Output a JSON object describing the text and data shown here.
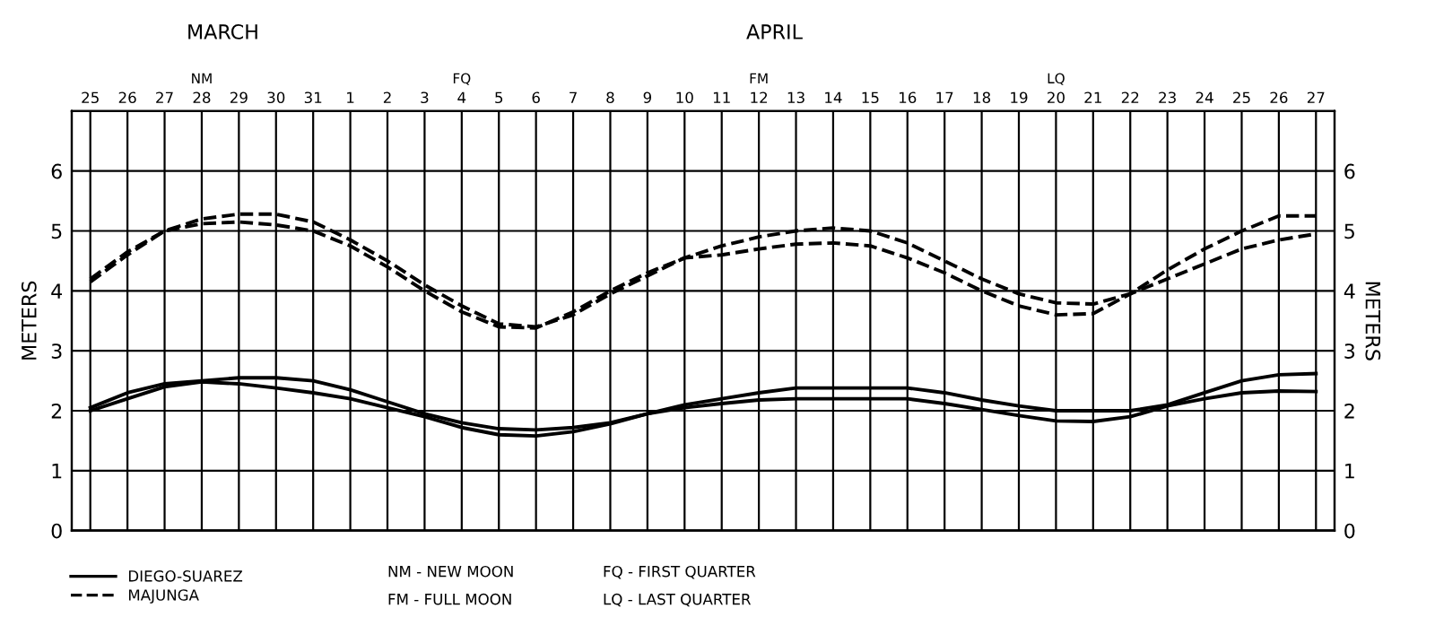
{
  "chart_data": {
    "type": "line",
    "categories": [
      "25",
      "26",
      "27",
      "28",
      "29",
      "30",
      "31",
      "1",
      "2",
      "3",
      "4",
      "5",
      "6",
      "7",
      "8",
      "9",
      "10",
      "11",
      "12",
      "13",
      "14",
      "15",
      "16",
      "17",
      "18",
      "19",
      "20",
      "21",
      "22",
      "23",
      "24",
      "25",
      "26",
      "27"
    ],
    "series": [
      {
        "name": "DIEGO-SUAREZ",
        "color": "#000000",
        "line_style": "solid",
        "values": [
          2.05,
          2.3,
          2.45,
          2.5,
          2.55,
          2.55,
          2.5,
          2.35,
          2.15,
          1.95,
          1.8,
          1.7,
          1.68,
          1.72,
          1.8,
          1.95,
          2.1,
          2.2,
          2.3,
          2.38,
          2.38,
          2.38,
          2.38,
          2.3,
          2.18,
          2.08,
          2.0,
          2.0,
          2.0,
          2.1,
          2.3,
          2.5,
          2.6,
          2.62
        ]
      },
      {
        "color": "#000000",
        "line_style": "solid",
        "values": [
          2.0,
          2.2,
          2.4,
          2.48,
          2.45,
          2.38,
          2.3,
          2.2,
          2.05,
          1.9,
          1.72,
          1.6,
          1.58,
          1.65,
          1.78,
          1.95,
          2.05,
          2.12,
          2.18,
          2.2,
          2.2,
          2.2,
          2.2,
          2.12,
          2.02,
          1.92,
          1.83,
          1.82,
          1.9,
          2.08,
          2.2,
          2.3,
          2.33,
          2.32
        ]
      },
      {
        "name": "MAJUNGA",
        "color": "#000000",
        "line_style": "dashed",
        "values": [
          4.2,
          4.65,
          5.0,
          5.2,
          5.28,
          5.28,
          5.15,
          4.85,
          4.5,
          4.1,
          3.75,
          3.45,
          3.4,
          3.6,
          3.95,
          4.25,
          4.55,
          4.75,
          4.9,
          5.0,
          5.05,
          5.0,
          4.8,
          4.5,
          4.2,
          3.95,
          3.8,
          3.78,
          3.95,
          4.35,
          4.7,
          5.0,
          5.25,
          5.25
        ]
      },
      {
        "color": "#000000",
        "line_style": "dashed",
        "values": [
          4.15,
          4.6,
          5.0,
          5.12,
          5.15,
          5.1,
          5.0,
          4.75,
          4.4,
          4.0,
          3.65,
          3.4,
          3.38,
          3.65,
          4.0,
          4.3,
          4.55,
          4.6,
          4.7,
          4.78,
          4.8,
          4.75,
          4.55,
          4.3,
          4.0,
          3.75,
          3.6,
          3.62,
          3.95,
          4.2,
          4.45,
          4.7,
          4.85,
          4.95
        ]
      }
    ],
    "ylabel": "METERS",
    "y2label": "METERS",
    "ylim": [
      0,
      7
    ],
    "yticks": [
      0,
      1,
      2,
      3,
      4,
      5,
      6
    ],
    "y2lim": [
      0,
      7
    ],
    "y2ticks": [
      0,
      1,
      2,
      3,
      4,
      5,
      6
    ],
    "grid": true,
    "legend": "bottom left",
    "marker": "none",
    "annotations": [
      "NM",
      "FQ",
      "FM",
      "LQ",
      "MARCH",
      "APRIL",
      "NM - NEW MOON",
      "FM - FULL MOON",
      "FQ - FIRST QUARTER",
      "LQ - LAST QUARTER"
    ]
  }
}
